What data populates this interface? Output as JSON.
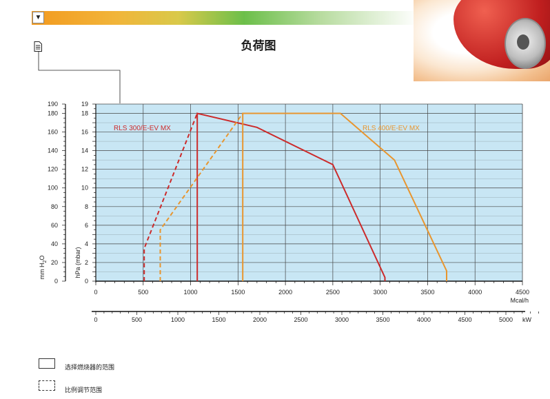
{
  "header": {
    "title": "负荷图",
    "bar_colors": [
      "#f39a1f",
      "#d9c94a",
      "#6cbf4a",
      "#ffffff"
    ]
  },
  "icons": {
    "dropdown": "chevron-down-icon",
    "document": "document-icon"
  },
  "legend": {
    "selection_label": "选择燃烧器的范围",
    "modulation_label": "比例调节范围"
  },
  "colors": {
    "plot_bg": "#c8e6f4",
    "red": "#cc2a2a",
    "orange": "#e8952e",
    "grid": "#444444"
  },
  "chart_data": {
    "type": "line",
    "xlabel_mcal": "Mcal/h",
    "xlabel_kw": "kW",
    "ylabel_left": "mm H2O",
    "ylabel_right": "hPa (mbar)",
    "xlim_mcal": [
      0,
      4500
    ],
    "ylim_hpa": [
      0,
      19
    ],
    "ylim_mmh2o": [
      0,
      190
    ],
    "x_ticks_mcal": [
      "0",
      "500",
      "1000",
      "1500",
      "2000",
      "2500",
      "3000",
      "3500",
      "4000",
      "4500"
    ],
    "x_ticks_kw": [
      "0",
      "500",
      "1000",
      "1500",
      "2000",
      "2500",
      "3000",
      "3500",
      "4000",
      "4500",
      "5000"
    ],
    "y_ticks_hpa": [
      "0",
      "2",
      "4",
      "6",
      "8",
      "10",
      "12",
      "14",
      "16",
      "18",
      "19"
    ],
    "y_ticks_mmh2o": [
      "0",
      "20",
      "40",
      "60",
      "80",
      "100",
      "120",
      "140",
      "160",
      "180",
      "190"
    ],
    "series": [
      {
        "name": "RLS 300/E-EV MX",
        "color": "#cc2a2a",
        "solid": [
          [
            1070,
            0
          ],
          [
            1070,
            18
          ],
          [
            1700,
            16.5
          ],
          [
            2500,
            12.5
          ],
          [
            3050,
            0.4
          ],
          [
            3050,
            0
          ]
        ],
        "dashed": [
          [
            510,
            0
          ],
          [
            510,
            3.5
          ],
          [
            1070,
            18
          ]
        ]
      },
      {
        "name": "RLS 400/E-EV MX",
        "color": "#e8952e",
        "solid": [
          [
            1550,
            0
          ],
          [
            1550,
            18
          ],
          [
            2580,
            18
          ],
          [
            3150,
            13
          ],
          [
            3700,
            1.1
          ],
          [
            3700,
            0
          ]
        ],
        "dashed": [
          [
            680,
            0
          ],
          [
            680,
            5.5
          ],
          [
            1550,
            18
          ]
        ]
      }
    ]
  }
}
